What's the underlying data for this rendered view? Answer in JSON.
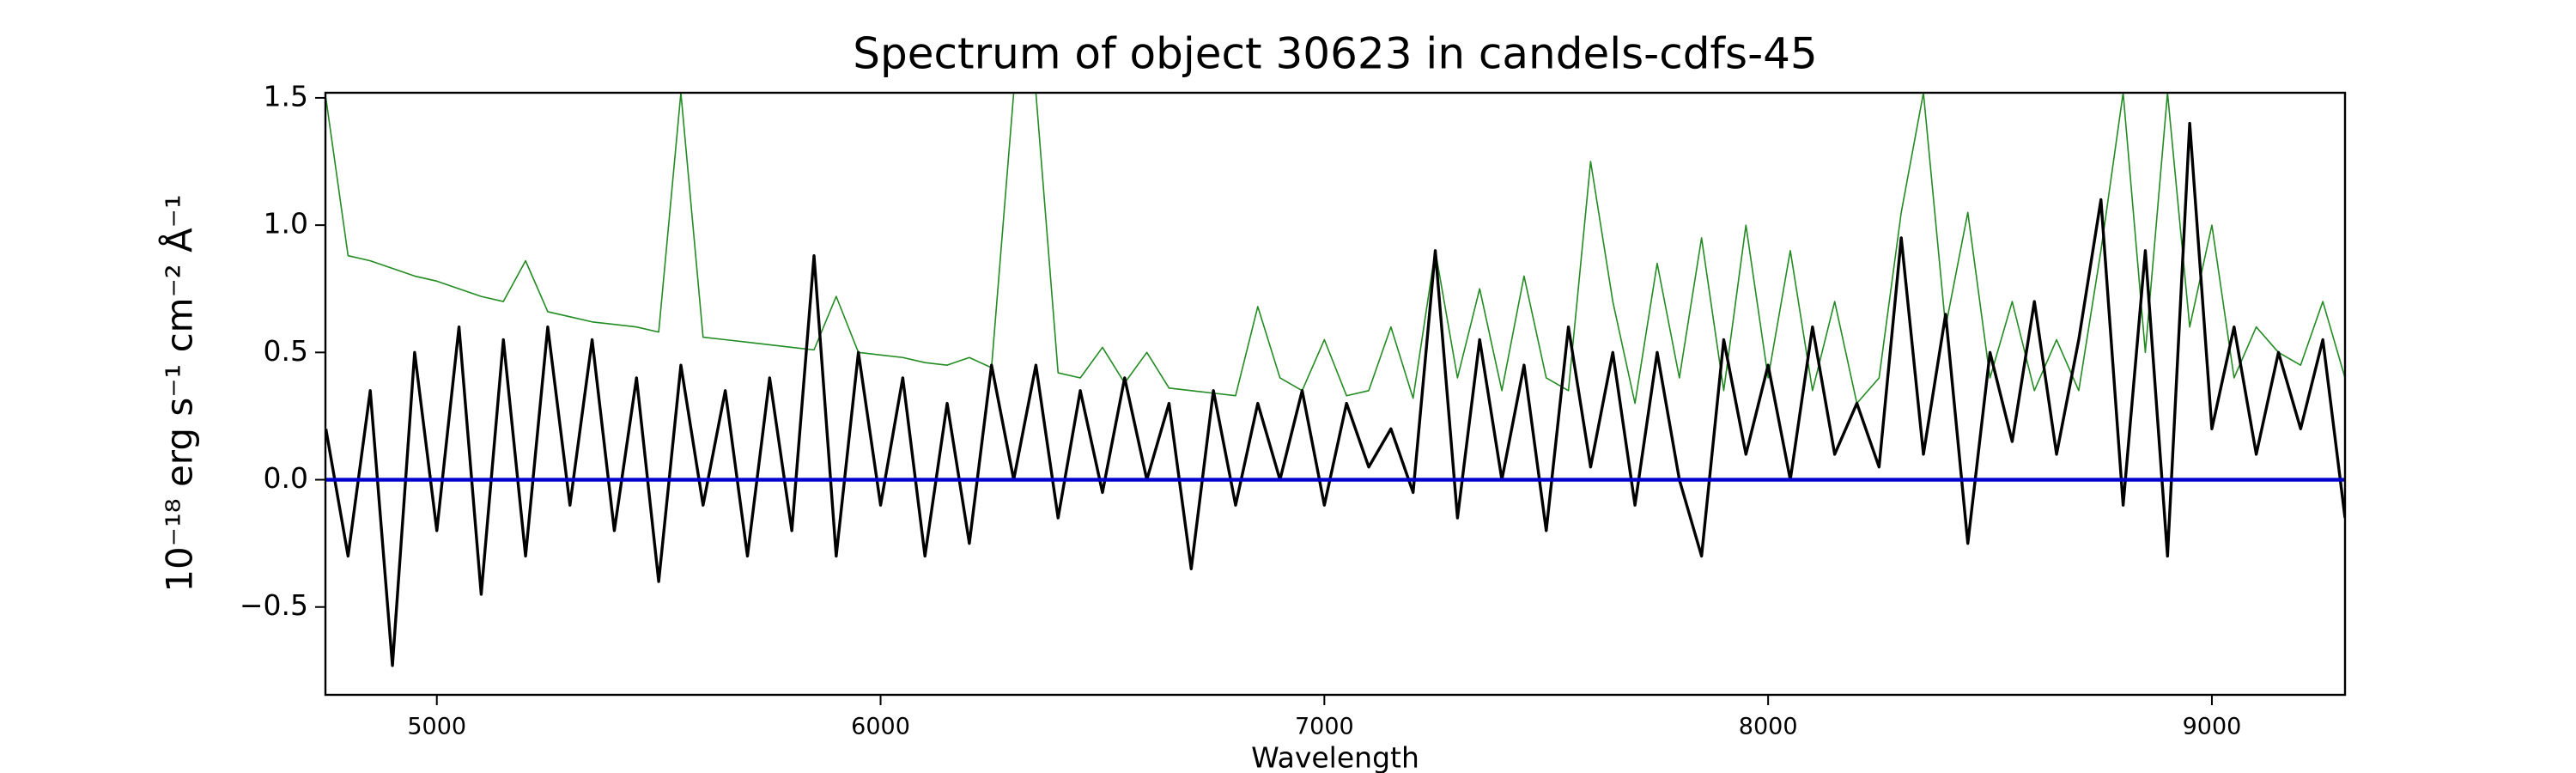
{
  "chart_data": {
    "type": "line",
    "title": "Spectrum of object 30623 in candels-cdfs-45",
    "x_label": "Wavelength",
    "y_label": "10⁻¹⁸ erg s⁻¹ cm⁻² Å⁻¹",
    "x": [
      4750,
      4800,
      4850,
      4900,
      4950,
      5000,
      5050,
      5100,
      5150,
      5200,
      5250,
      5300,
      5350,
      5400,
      5450,
      5500,
      5550,
      5600,
      5650,
      5700,
      5750,
      5800,
      5850,
      5900,
      5950,
      6000,
      6050,
      6100,
      6150,
      6200,
      6250,
      6300,
      6350,
      6400,
      6450,
      6500,
      6550,
      6600,
      6650,
      6700,
      6750,
      6800,
      6850,
      6900,
      6950,
      7000,
      7050,
      7100,
      7150,
      7200,
      7250,
      7300,
      7350,
      7400,
      7450,
      7500,
      7550,
      7600,
      7650,
      7700,
      7750,
      7800,
      7850,
      7900,
      7950,
      8000,
      8050,
      8100,
      8150,
      8200,
      8250,
      8300,
      8350,
      8400,
      8450,
      8500,
      8550,
      8600,
      8650,
      8700,
      8750,
      8800,
      8850,
      8900,
      8950,
      9000,
      9050,
      9100,
      9150,
      9200,
      9250,
      9300
    ],
    "series": [
      {
        "color": "#228b22",
        "values": [
          1.5,
          0.88,
          0.86,
          0.83,
          0.8,
          0.78,
          0.75,
          0.72,
          0.7,
          0.86,
          0.66,
          0.64,
          0.62,
          0.61,
          0.6,
          0.58,
          1.52,
          0.56,
          0.55,
          0.54,
          0.53,
          0.52,
          0.51,
          0.72,
          0.5,
          0.49,
          0.48,
          0.46,
          0.45,
          0.48,
          0.44,
          1.52,
          1.52,
          0.42,
          0.4,
          0.52,
          0.38,
          0.5,
          0.36,
          0.35,
          0.34,
          0.33,
          0.68,
          0.4,
          0.35,
          0.55,
          0.33,
          0.35,
          0.6,
          0.32,
          0.9,
          0.4,
          0.75,
          0.35,
          0.8,
          0.4,
          0.35,
          1.25,
          0.7,
          0.3,
          0.85,
          0.4,
          0.95,
          0.35,
          1.0,
          0.4,
          0.9,
          0.35,
          0.7,
          0.3,
          0.4,
          1.05,
          1.52,
          0.6,
          1.05,
          0.4,
          0.7,
          0.35,
          0.55,
          0.35,
          0.9,
          1.52,
          0.5,
          1.52,
          0.6,
          1.0,
          0.4,
          0.6,
          0.5,
          0.45,
          0.7,
          0.4
        ]
      },
      {
        "color": "#000000",
        "values": [
          0.2,
          -0.3,
          0.35,
          -0.73,
          0.5,
          -0.2,
          0.6,
          -0.45,
          0.55,
          -0.3,
          0.6,
          -0.1,
          0.55,
          -0.2,
          0.4,
          -0.4,
          0.45,
          -0.1,
          0.35,
          -0.3,
          0.4,
          -0.2,
          0.88,
          -0.3,
          0.5,
          -0.1,
          0.4,
          -0.3,
          0.3,
          -0.25,
          0.45,
          0.0,
          0.45,
          -0.15,
          0.35,
          -0.05,
          0.4,
          0.0,
          0.3,
          -0.35,
          0.35,
          -0.1,
          0.3,
          0.0,
          0.35,
          -0.1,
          0.3,
          0.05,
          0.2,
          -0.05,
          0.9,
          -0.15,
          0.55,
          0.0,
          0.45,
          -0.2,
          0.6,
          0.05,
          0.5,
          -0.1,
          0.5,
          0.0,
          -0.3,
          0.55,
          0.1,
          0.45,
          0.0,
          0.6,
          0.1,
          0.3,
          0.05,
          0.95,
          0.1,
          0.65,
          -0.25,
          0.5,
          0.15,
          0.7,
          0.1,
          0.55,
          1.1,
          -0.1,
          0.9,
          -0.3,
          1.4,
          0.2,
          0.6,
          0.1,
          0.5,
          0.2,
          0.55,
          -0.15
        ]
      },
      {
        "color": "#0000cc",
        "values": [
          0,
          0,
          0,
          0,
          0,
          0,
          0,
          0,
          0,
          0,
          0,
          0,
          0,
          0,
          0,
          0,
          0,
          0,
          0,
          0,
          0,
          0,
          0,
          0,
          0,
          0,
          0,
          0,
          0,
          0,
          0,
          0,
          0,
          0,
          0,
          0,
          0,
          0,
          0,
          0,
          0,
          0,
          0,
          0,
          0,
          0,
          0,
          0,
          0,
          0,
          0,
          0,
          0,
          0,
          0,
          0,
          0,
          0,
          0,
          0,
          0,
          0,
          0,
          0,
          0,
          0,
          0,
          0,
          0,
          0,
          0,
          0,
          0,
          0,
          0,
          0,
          0,
          0,
          0,
          0,
          0,
          0,
          0,
          0,
          0,
          0,
          0,
          0,
          0,
          0,
          0,
          0
        ]
      }
    ],
    "xlim": [
      4749,
      9300
    ],
    "ylim": [
      -0.845,
      1.52
    ],
    "xticks": [
      5000,
      6000,
      7000,
      8000,
      9000
    ],
    "yticks": [
      {
        "value": -0.5,
        "label": "−0.5"
      },
      {
        "value": 0,
        "label": "0.0"
      },
      0.5,
      {
        "value": 1,
        "label": "1.0"
      },
      1.5
    ],
    "grid": false
  }
}
